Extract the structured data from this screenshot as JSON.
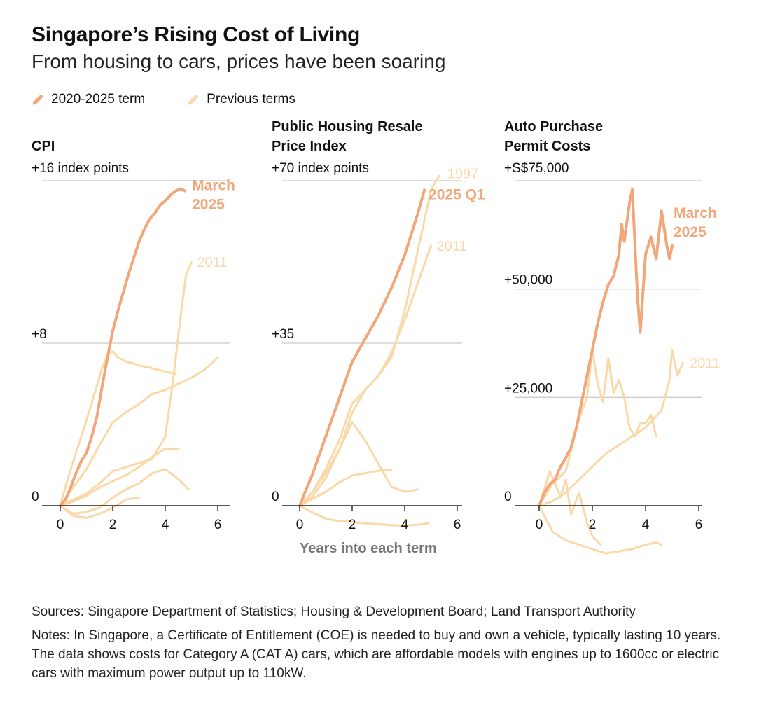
{
  "title": "Singapore’s Rising Cost of Living",
  "subtitle": "From housing to cars, prices have been soaring",
  "legend": [
    {
      "label": "2020-2025 term",
      "color": "#f2a77a"
    },
    {
      "label": "Previous terms",
      "color": "#fad9a8"
    }
  ],
  "xaxis_caption": "Years into each term",
  "sources": "Sources: Singapore Department of Statistics; Housing & Development Board; Land Transport Authority",
  "notes": "Notes: In Singapore, a Certificate of Entitlement (COE) is needed to buy and own a vehicle, typically lasting 10 years. The data shows costs for Category A (CAT A) cars, which are affordable models with engines up to 1600cc or electric cars with maximum power output up to 110kW.",
  "colors": {
    "current": "#f2a77a",
    "previous": "#fad9a8",
    "grid": "#cccccc",
    "axis": "#222222"
  },
  "chart_data": [
    {
      "type": "line",
      "title": "CPI",
      "unit_label": "+16 index points",
      "ytick_labels": [
        "0",
        "+8"
      ],
      "yticks": [
        0,
        8,
        16
      ],
      "xticks": [
        0,
        2,
        4,
        6
      ],
      "xlim": [
        -0.6,
        6.3
      ],
      "ylim": [
        -1,
        16
      ],
      "annotations": [
        {
          "text": "March 2025",
          "series": "2020-2025 term"
        },
        {
          "text": "2011",
          "series": "Previous 2011"
        }
      ],
      "series": [
        {
          "name": "2020-2025 term",
          "current": true,
          "label": "March 2025",
          "x": [
            0,
            0.2,
            0.4,
            0.6,
            0.8,
            1.0,
            1.2,
            1.4,
            1.6,
            1.8,
            2.0,
            2.2,
            2.4,
            2.6,
            2.8,
            3.0,
            3.2,
            3.4,
            3.6,
            3.8,
            4.0,
            4.2,
            4.4,
            4.6,
            4.75
          ],
          "y": [
            0,
            0.3,
            0.9,
            1.6,
            2.2,
            2.6,
            3.4,
            4.4,
            5.9,
            7.3,
            8.6,
            9.6,
            10.5,
            11.4,
            12.2,
            13.0,
            13.6,
            14.1,
            14.4,
            14.8,
            15.0,
            15.3,
            15.5,
            15.6,
            15.5
          ]
        },
        {
          "name": "Previous 2011",
          "current": false,
          "label": "2011",
          "x": [
            0,
            0.5,
            1.0,
            1.5,
            2.0,
            2.5,
            3.0,
            3.5,
            4.0,
            4.3,
            4.6,
            4.8,
            5.0
          ],
          "y": [
            0,
            0.3,
            0.6,
            1.1,
            1.7,
            1.9,
            2.1,
            2.3,
            3.4,
            6.2,
            9.5,
            11.4,
            12.0
          ]
        },
        {
          "name": "Previous A",
          "current": false,
          "x": [
            0,
            0.5,
            1.0,
            1.5,
            2.0,
            2.5,
            3.0,
            3.5,
            4.0,
            4.5,
            5.0,
            5.5,
            6.0
          ],
          "y": [
            0,
            0.9,
            1.8,
            3.0,
            4.1,
            4.6,
            5.0,
            5.5,
            5.7,
            6.0,
            6.3,
            6.7,
            7.3
          ]
        },
        {
          "name": "Previous B",
          "current": false,
          "x": [
            0,
            0.3,
            0.7,
            1.0,
            1.3,
            1.6,
            1.8,
            2.0,
            2.2,
            2.5,
            2.8,
            3.0,
            3.4,
            3.7,
            4.0,
            4.4
          ],
          "y": [
            0,
            1.4,
            3.0,
            4.2,
            5.5,
            6.8,
            7.4,
            7.6,
            7.3,
            7.1,
            7.0,
            6.9,
            6.8,
            6.7,
            6.6,
            6.5
          ]
        },
        {
          "name": "Previous C",
          "current": false,
          "x": [
            0,
            0.5,
            1.0,
            1.5,
            2.0,
            2.5,
            3.0,
            3.5,
            4.0,
            4.5
          ],
          "y": [
            0,
            0.2,
            0.5,
            0.9,
            1.2,
            1.5,
            1.9,
            2.4,
            2.8,
            2.8
          ]
        },
        {
          "name": "Previous D",
          "current": false,
          "x": [
            0,
            0.5,
            1.0,
            1.5,
            2.0,
            2.5,
            3.0,
            3.5,
            4.0,
            4.5,
            4.9
          ],
          "y": [
            0,
            -0.4,
            -0.3,
            -0.1,
            0.4,
            0.8,
            1.1,
            1.6,
            1.8,
            1.3,
            0.8
          ]
        },
        {
          "name": "Previous E",
          "current": false,
          "x": [
            0,
            0.5,
            1.0,
            1.5,
            2.0,
            2.5,
            3.0
          ],
          "y": [
            0,
            -0.5,
            -0.6,
            -0.4,
            -0.1,
            0.3,
            0.4
          ]
        }
      ]
    },
    {
      "type": "line",
      "title": "Public Housing Resale Price Index",
      "unit_label": "+70 index points",
      "ytick_labels": [
        "0",
        "+35"
      ],
      "yticks": [
        0,
        35,
        70
      ],
      "xticks": [
        0,
        2,
        4,
        6
      ],
      "xlim": [
        -0.6,
        6.3
      ],
      "ylim": [
        -6,
        70
      ],
      "annotations": [
        {
          "text": "2025 Q1",
          "series": "2020-2025 term"
        },
        {
          "text": "1997",
          "series": "Previous 1997"
        },
        {
          "text": "2011",
          "series": "Previous 2011"
        }
      ],
      "series": [
        {
          "name": "2020-2025 term",
          "current": true,
          "label": "2025 Q1",
          "x": [
            0,
            0.5,
            1.0,
            1.5,
            2.0,
            2.5,
            3.0,
            3.5,
            4.0,
            4.5,
            4.75
          ],
          "y": [
            0,
            7,
            15,
            23,
            31,
            36,
            41,
            47,
            54,
            63,
            68
          ]
        },
        {
          "name": "Previous 1997",
          "current": false,
          "label": "1997",
          "x": [
            0,
            0.5,
            1.0,
            1.5,
            2.0,
            2.5,
            3.0,
            3.5,
            4.0,
            4.5,
            5.0,
            5.3
          ],
          "y": [
            0,
            3,
            7,
            12,
            20,
            25,
            28,
            32,
            42,
            55,
            68,
            71
          ]
        },
        {
          "name": "Previous 2011",
          "current": false,
          "label": "2011",
          "x": [
            0,
            0.5,
            1.0,
            1.5,
            2.0,
            2.5,
            3.0,
            3.5,
            4.0,
            4.5,
            5.0
          ],
          "y": [
            0,
            3,
            8,
            14,
            22,
            25,
            28,
            33,
            40,
            48,
            56
          ]
        },
        {
          "name": "Previous A",
          "current": false,
          "x": [
            0,
            0.5,
            1.0,
            1.5,
            2.0,
            2.5,
            3.0,
            3.5,
            4.0,
            4.5
          ],
          "y": [
            0,
            2,
            6,
            12,
            18,
            14,
            9,
            4,
            3,
            3.5
          ]
        },
        {
          "name": "Previous B",
          "current": false,
          "x": [
            0,
            0.5,
            1.0,
            1.5,
            2.0,
            2.5,
            3.0,
            3.5
          ],
          "y": [
            0,
            1.5,
            3,
            5,
            6.5,
            7,
            7.5,
            7.8
          ]
        },
        {
          "name": "Previous C",
          "current": false,
          "x": [
            0,
            0.5,
            1.0,
            1.5,
            2.0,
            2.5,
            3.0,
            3.5,
            4.0,
            4.5,
            4.9
          ],
          "y": [
            0,
            -1.5,
            -2.8,
            -3.3,
            -3.5,
            -3.8,
            -4.0,
            -4.2,
            -4.3,
            -4.1,
            -3.8
          ]
        }
      ]
    },
    {
      "type": "line",
      "title": "Auto Purchase Permit Costs",
      "unit_label": "+S$75,000",
      "ytick_labels": [
        "0",
        "+25,000",
        "+50,000"
      ],
      "yticks": [
        0,
        25000,
        50000,
        75000
      ],
      "xticks": [
        0,
        2,
        4,
        6
      ],
      "xlim": [
        -0.6,
        6.3
      ],
      "ylim": [
        -10000,
        75000
      ],
      "annotations": [
        {
          "text": "March 2025",
          "series": "2020-2025 term"
        },
        {
          "text": "2011",
          "series": "Previous 2011"
        }
      ],
      "series": [
        {
          "name": "2020-2025 term",
          "current": true,
          "label": "March 2025",
          "x": [
            0,
            0.2,
            0.4,
            0.6,
            0.8,
            1.0,
            1.2,
            1.4,
            1.6,
            1.8,
            2.0,
            2.2,
            2.4,
            2.6,
            2.8,
            3.0,
            3.1,
            3.2,
            3.4,
            3.5,
            3.7,
            3.8,
            4.0,
            4.2,
            4.4,
            4.6,
            4.8,
            4.9,
            5.0
          ],
          "y": [
            0,
            3000,
            5000,
            6000,
            9000,
            11000,
            13500,
            18000,
            24000,
            30000,
            36000,
            42000,
            47000,
            51000,
            53000,
            58000,
            65000,
            61000,
            70000,
            73000,
            48000,
            40000,
            58000,
            62000,
            57000,
            68000,
            60000,
            57000,
            60000
          ]
        },
        {
          "name": "Previous 2011",
          "current": false,
          "label": "2011",
          "x": [
            0,
            0.5,
            1.0,
            1.5,
            2.0,
            2.5,
            3.0,
            3.5,
            4.0,
            4.3,
            4.6,
            4.9,
            5.0,
            5.2,
            5.4
          ],
          "y": [
            0,
            1000,
            3000,
            6000,
            9000,
            12000,
            14000,
            16000,
            18000,
            20000,
            22000,
            29000,
            36000,
            30000,
            33000
          ]
        },
        {
          "name": "Previous A",
          "current": false,
          "x": [
            0,
            0.5,
            1.0,
            1.5,
            1.8,
            2.0,
            2.2,
            2.4,
            2.6,
            2.8,
            3.0,
            3.2,
            3.4,
            3.6,
            3.8,
            4.0,
            4.2,
            4.4
          ],
          "y": [
            0,
            5000,
            8000,
            20000,
            25000,
            36000,
            28000,
            24000,
            34000,
            26000,
            29000,
            25000,
            18000,
            16000,
            19000,
            19000,
            21000,
            16000
          ]
        },
        {
          "name": "Previous B",
          "current": false,
          "x": [
            0,
            0.5,
            1.0,
            1.5,
            2.0,
            2.5,
            3.0,
            3.5,
            4.0,
            4.4,
            4.6
          ],
          "y": [
            0,
            -6000,
            -8000,
            -9000,
            -10000,
            -11000,
            -10500,
            -10000,
            -9000,
            -8500,
            -9000
          ]
        },
        {
          "name": "Previous C",
          "current": false,
          "x": [
            0,
            0.4,
            0.8,
            1.0,
            1.2,
            1.5,
            1.8,
            2.0,
            2.3
          ],
          "y": [
            0,
            8000,
            2000,
            6000,
            -2000,
            3000,
            -4000,
            -7000,
            -9000
          ]
        }
      ]
    }
  ]
}
